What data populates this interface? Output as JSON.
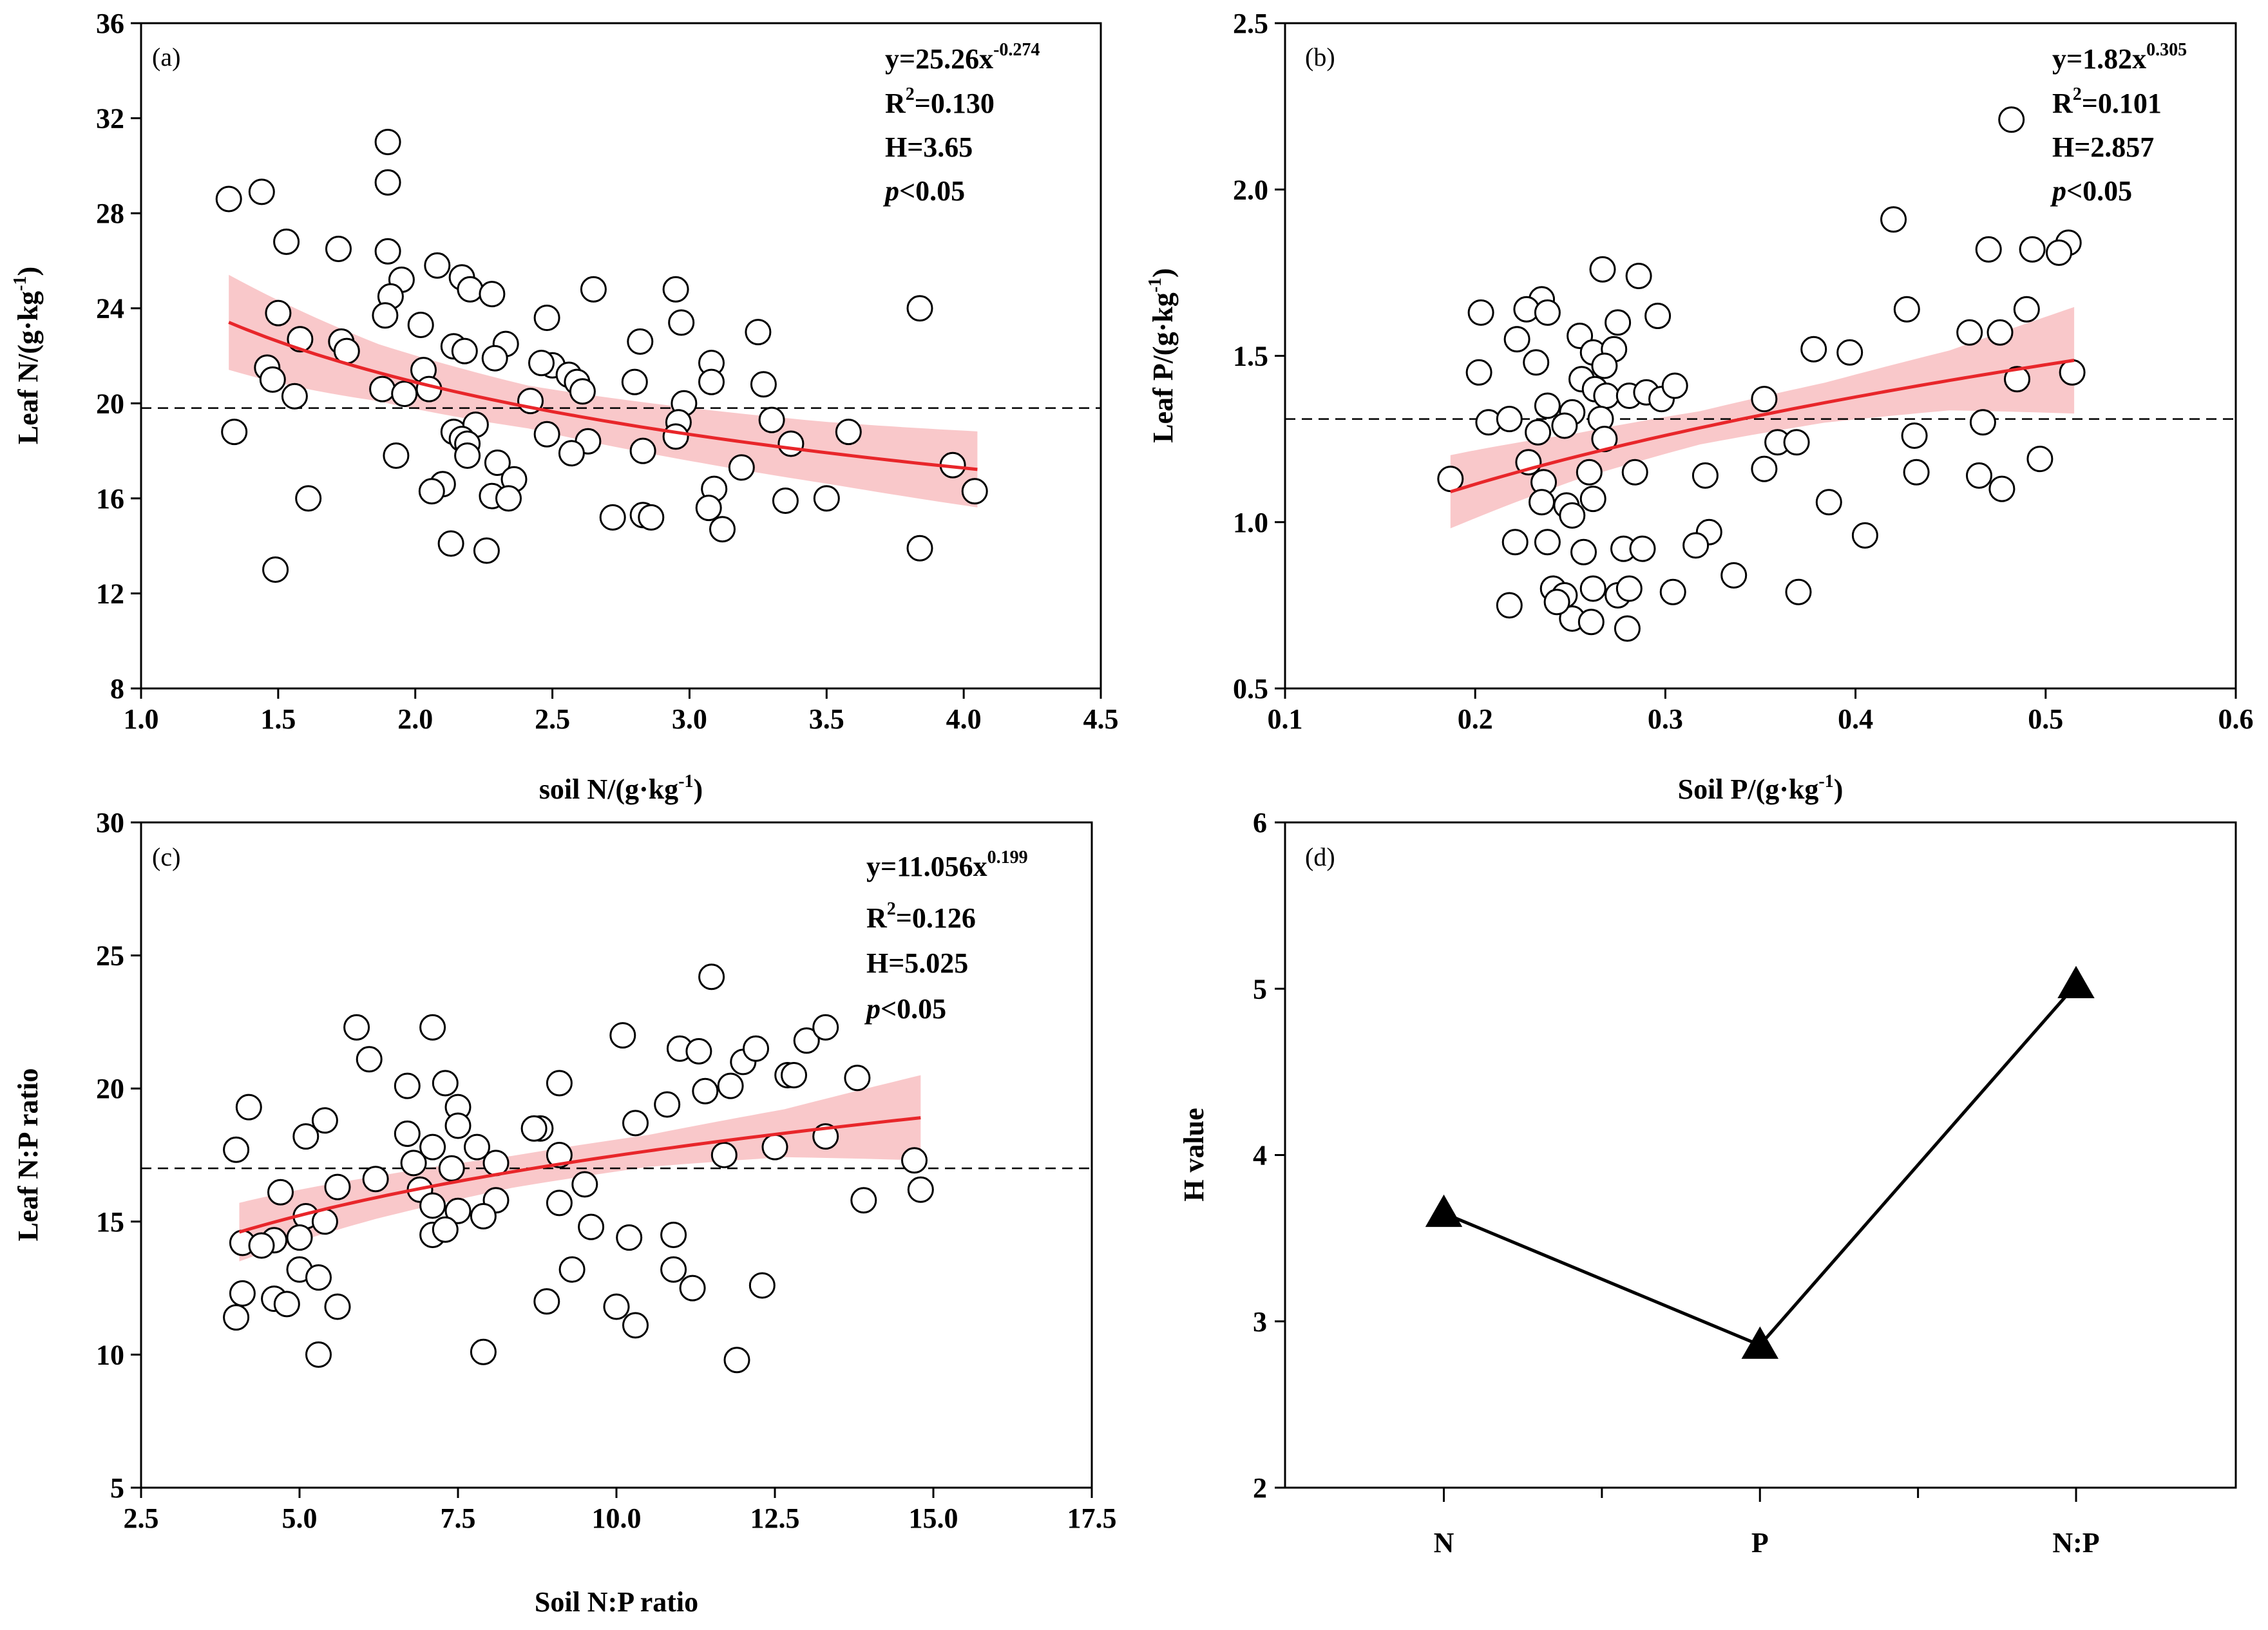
{
  "chart_data": [
    {
      "type": "scatter",
      "panel_label": "(a)",
      "xlabel": "soil N/(g·kg-1)",
      "ylabel": "Leaf N/(g·kg-1)",
      "xlabel_parts": {
        "main": "soil N/(g·kg",
        "sup": "-1",
        "end": ")"
      },
      "ylabel_parts": {
        "main": "Leaf N/(g·kg",
        "sup": "-1",
        "end": ")"
      },
      "xlim": [
        1.0,
        4.5
      ],
      "ylim": [
        8,
        36
      ],
      "xticks": [
        1.0,
        1.5,
        2.0,
        2.5,
        3.0,
        3.5,
        4.0,
        4.5
      ],
      "yticks": [
        8,
        12,
        16,
        20,
        24,
        28,
        32,
        36
      ],
      "xtick_labels": [
        "1.0",
        "1.5",
        "2.0",
        "2.5",
        "3.0",
        "3.5",
        "4.0",
        "4.5"
      ],
      "ytick_labels": [
        "8",
        "12",
        "16",
        "20",
        "24",
        "28",
        "32",
        "36"
      ],
      "mean_line": 19.8,
      "fit": {
        "a": 25.26,
        "b": -0.274,
        "x_range": [
          1.32,
          4.05
        ]
      },
      "band_halfwidth": [
        2.0,
        1.2,
        0.9,
        1.1,
        1.3,
        1.6
      ],
      "equation": {
        "base": "y=25.26x",
        "exp": "-0.274"
      },
      "r2": {
        "base": "R",
        "exp": "2",
        "rest": "=0.130"
      },
      "h_text": "H=3.65",
      "p_text": {
        "p": "p",
        "rest": "<0.05"
      },
      "points": [
        [
          1.32,
          28.6
        ],
        [
          1.44,
          28.9
        ],
        [
          1.9,
          31.0
        ],
        [
          1.9,
          29.3
        ],
        [
          1.53,
          26.8
        ],
        [
          1.72,
          26.5
        ],
        [
          1.9,
          26.4
        ],
        [
          1.95,
          25.2
        ],
        [
          1.91,
          24.5
        ],
        [
          2.08,
          25.8
        ],
        [
          2.17,
          25.3
        ],
        [
          2.2,
          24.8
        ],
        [
          2.28,
          24.6
        ],
        [
          2.65,
          24.8
        ],
        [
          2.95,
          24.8
        ],
        [
          3.84,
          24.0
        ],
        [
          1.5,
          23.8
        ],
        [
          1.89,
          23.7
        ],
        [
          2.02,
          23.3
        ],
        [
          2.48,
          23.6
        ],
        [
          2.97,
          23.4
        ],
        [
          3.25,
          23.0
        ],
        [
          1.58,
          22.7
        ],
        [
          1.73,
          22.6
        ],
        [
          2.14,
          22.4
        ],
        [
          2.33,
          22.5
        ],
        [
          2.82,
          22.6
        ],
        [
          1.75,
          22.2
        ],
        [
          2.18,
          22.2
        ],
        [
          2.29,
          21.9
        ],
        [
          2.5,
          21.6
        ],
        [
          2.46,
          21.7
        ],
        [
          3.08,
          21.7
        ],
        [
          1.46,
          21.5
        ],
        [
          2.03,
          21.4
        ],
        [
          2.56,
          21.2
        ],
        [
          2.59,
          20.9
        ],
        [
          3.08,
          20.9
        ],
        [
          3.27,
          20.8
        ],
        [
          1.48,
          21.0
        ],
        [
          1.88,
          20.6
        ],
        [
          2.05,
          20.6
        ],
        [
          2.42,
          20.1
        ],
        [
          2.61,
          20.5
        ],
        [
          2.8,
          20.9
        ],
        [
          2.98,
          20.0
        ],
        [
          1.56,
          20.3
        ],
        [
          1.96,
          20.4
        ],
        [
          2.96,
          19.2
        ],
        [
          3.3,
          19.3
        ],
        [
          2.14,
          18.8
        ],
        [
          2.22,
          19.1
        ],
        [
          2.48,
          18.7
        ],
        [
          2.63,
          18.4
        ],
        [
          2.95,
          18.6
        ],
        [
          3.37,
          18.3
        ],
        [
          3.58,
          18.8
        ],
        [
          1.34,
          18.8
        ],
        [
          2.17,
          18.5
        ],
        [
          2.19,
          18.3
        ],
        [
          2.57,
          17.9
        ],
        [
          2.83,
          18.0
        ],
        [
          3.19,
          17.3
        ],
        [
          3.96,
          17.4
        ],
        [
          1.93,
          17.8
        ],
        [
          2.19,
          17.8
        ],
        [
          2.3,
          17.5
        ],
        [
          2.36,
          16.8
        ],
        [
          2.1,
          16.6
        ],
        [
          2.28,
          16.1
        ],
        [
          2.34,
          16.0
        ],
        [
          3.09,
          16.4
        ],
        [
          3.35,
          15.9
        ],
        [
          3.5,
          16.0
        ],
        [
          4.04,
          16.3
        ],
        [
          2.06,
          16.3
        ],
        [
          1.61,
          16.0
        ],
        [
          2.72,
          15.2
        ],
        [
          2.83,
          15.3
        ],
        [
          2.86,
          15.2
        ],
        [
          3.07,
          15.6
        ],
        [
          3.12,
          14.7
        ],
        [
          2.13,
          14.1
        ],
        [
          2.26,
          13.8
        ],
        [
          3.84,
          13.9
        ],
        [
          1.49,
          13.0
        ]
      ]
    },
    {
      "type": "scatter",
      "panel_label": "(b)",
      "xlabel": "Soil P/(g·kg-1)",
      "ylabel": "Leaf P/(g·kg-1)",
      "xlabel_parts": {
        "main": "Soil P/(g·kg",
        "sup": "-1",
        "end": ")"
      },
      "ylabel_parts": {
        "main": "Leaf P/(g·kg",
        "sup": "-1",
        "end": ")"
      },
      "xlim": [
        0.1,
        0.6
      ],
      "ylim": [
        0.5,
        2.5
      ],
      "xticks": [
        0.1,
        0.2,
        0.3,
        0.4,
        0.5,
        0.6
      ],
      "yticks": [
        0.5,
        1.0,
        1.5,
        2.0,
        2.5
      ],
      "xtick_labels": [
        "0.1",
        "0.2",
        "0.3",
        "0.4",
        "0.5",
        "0.6"
      ],
      "ytick_labels": [
        "0.5",
        "1.0",
        "1.5",
        "2.0",
        "2.5"
      ],
      "mean_line": 1.31,
      "fit": {
        "a": 1.82,
        "b": 0.305,
        "x_range": [
          0.187,
          0.515
        ]
      },
      "band_halfwidth": [
        0.11,
        0.07,
        0.05,
        0.06,
        0.09,
        0.16
      ],
      "equation": {
        "base": "y=1.82x",
        "exp": "0.305"
      },
      "r2": {
        "base": "R",
        "exp": "2",
        "rest": "=0.101"
      },
      "h_text": "H=2.857",
      "p_text": {
        "p": "p",
        "rest": "<0.05"
      },
      "points": [
        [
          0.482,
          2.21
        ],
        [
          0.42,
          1.91
        ],
        [
          0.512,
          1.84
        ],
        [
          0.47,
          1.82
        ],
        [
          0.493,
          1.82
        ],
        [
          0.507,
          1.81
        ],
        [
          0.267,
          1.76
        ],
        [
          0.286,
          1.74
        ],
        [
          0.235,
          1.67
        ],
        [
          0.227,
          1.64
        ],
        [
          0.238,
          1.63
        ],
        [
          0.203,
          1.63
        ],
        [
          0.275,
          1.6
        ],
        [
          0.296,
          1.62
        ],
        [
          0.427,
          1.64
        ],
        [
          0.49,
          1.64
        ],
        [
          0.255,
          1.56
        ],
        [
          0.222,
          1.55
        ],
        [
          0.46,
          1.57
        ],
        [
          0.476,
          1.57
        ],
        [
          0.262,
          1.51
        ],
        [
          0.273,
          1.52
        ],
        [
          0.378,
          1.52
        ],
        [
          0.397,
          1.51
        ],
        [
          0.232,
          1.48
        ],
        [
          0.268,
          1.47
        ],
        [
          0.202,
          1.45
        ],
        [
          0.256,
          1.43
        ],
        [
          0.514,
          1.45
        ],
        [
          0.485,
          1.43
        ],
        [
          0.263,
          1.4
        ],
        [
          0.269,
          1.38
        ],
        [
          0.281,
          1.38
        ],
        [
          0.29,
          1.39
        ],
        [
          0.298,
          1.37
        ],
        [
          0.305,
          1.41
        ],
        [
          0.352,
          1.37
        ],
        [
          0.238,
          1.35
        ],
        [
          0.251,
          1.33
        ],
        [
          0.266,
          1.31
        ],
        [
          0.207,
          1.3
        ],
        [
          0.218,
          1.31
        ],
        [
          0.233,
          1.27
        ],
        [
          0.247,
          1.29
        ],
        [
          0.268,
          1.25
        ],
        [
          0.431,
          1.26
        ],
        [
          0.467,
          1.3
        ],
        [
          0.359,
          1.24
        ],
        [
          0.369,
          1.24
        ],
        [
          0.228,
          1.18
        ],
        [
          0.236,
          1.12
        ],
        [
          0.26,
          1.15
        ],
        [
          0.284,
          1.15
        ],
        [
          0.352,
          1.16
        ],
        [
          0.321,
          1.14
        ],
        [
          0.432,
          1.15
        ],
        [
          0.465,
          1.14
        ],
        [
          0.477,
          1.1
        ],
        [
          0.497,
          1.19
        ],
        [
          0.187,
          1.13
        ],
        [
          0.248,
          1.05
        ],
        [
          0.262,
          1.07
        ],
        [
          0.235,
          1.06
        ],
        [
          0.386,
          1.06
        ],
        [
          0.251,
          1.02
        ],
        [
          0.405,
          0.96
        ],
        [
          0.323,
          0.97
        ],
        [
          0.316,
          0.93
        ],
        [
          0.221,
          0.94
        ],
        [
          0.238,
          0.94
        ],
        [
          0.257,
          0.91
        ],
        [
          0.278,
          0.92
        ],
        [
          0.288,
          0.92
        ],
        [
          0.336,
          0.84
        ],
        [
          0.241,
          0.8
        ],
        [
          0.247,
          0.78
        ],
        [
          0.262,
          0.8
        ],
        [
          0.275,
          0.78
        ],
        [
          0.281,
          0.8
        ],
        [
          0.304,
          0.79
        ],
        [
          0.37,
          0.79
        ],
        [
          0.218,
          0.75
        ],
        [
          0.251,
          0.71
        ],
        [
          0.261,
          0.7
        ],
        [
          0.28,
          0.68
        ],
        [
          0.243,
          0.76
        ]
      ]
    },
    {
      "type": "scatter",
      "panel_label": "(c)",
      "xlabel": "Soil N:P ratio",
      "ylabel": "Leaf N:P ratio",
      "xlabel_parts": {
        "main": "Soil N:P ratio",
        "sup": "",
        "end": ""
      },
      "ylabel_parts": {
        "main": "Leaf N:P ratio",
        "sup": "",
        "end": ""
      },
      "xlim": [
        2.5,
        17.5
      ],
      "ylim": [
        5,
        30
      ],
      "xticks": [
        2.5,
        5.0,
        7.5,
        10.0,
        12.5,
        15.0,
        17.5
      ],
      "yticks": [
        5,
        10,
        15,
        20,
        25,
        30
      ],
      "xtick_labels": [
        "2.5",
        "5.0",
        "7.5",
        "10.0",
        "12.5",
        "15.0",
        "17.5"
      ],
      "ytick_labels": [
        "5",
        "10",
        "15",
        "20",
        "25",
        "30"
      ],
      "mean_line": 17.0,
      "fit": {
        "a": 11.056,
        "b": 0.199,
        "x_range": [
          4.05,
          14.8
        ]
      },
      "band_halfwidth": [
        1.1,
        0.8,
        0.6,
        0.6,
        0.9,
        1.6
      ],
      "equation": {
        "base": "y=11.056x",
        "exp": "0.199"
      },
      "r2": {
        "base": "R",
        "exp": "2",
        "rest": "=0.126"
      },
      "h_text": "H=5.025",
      "p_text": {
        "p": "p",
        "rest": "<0.05"
      },
      "points": [
        [
          11.5,
          24.2
        ],
        [
          5.9,
          22.3
        ],
        [
          7.1,
          22.3
        ],
        [
          10.1,
          22.0
        ],
        [
          13.0,
          21.8
        ],
        [
          13.3,
          22.3
        ],
        [
          11.0,
          21.5
        ],
        [
          11.3,
          21.4
        ],
        [
          12.0,
          21.0
        ],
        [
          12.2,
          21.5
        ],
        [
          6.1,
          21.1
        ],
        [
          4.2,
          19.3
        ],
        [
          7.3,
          20.2
        ],
        [
          6.7,
          20.1
        ],
        [
          9.1,
          20.2
        ],
        [
          12.7,
          20.5
        ],
        [
          12.8,
          20.5
        ],
        [
          13.8,
          20.4
        ],
        [
          10.8,
          19.4
        ],
        [
          11.4,
          19.9
        ],
        [
          11.8,
          20.1
        ],
        [
          7.5,
          19.3
        ],
        [
          7.5,
          18.6
        ],
        [
          5.4,
          18.8
        ],
        [
          5.1,
          18.2
        ],
        [
          6.7,
          18.3
        ],
        [
          8.8,
          18.5
        ],
        [
          8.7,
          18.5
        ],
        [
          10.3,
          18.7
        ],
        [
          4.0,
          17.7
        ],
        [
          7.1,
          17.8
        ],
        [
          7.8,
          17.8
        ],
        [
          7.4,
          17.0
        ],
        [
          8.1,
          17.2
        ],
        [
          9.1,
          17.5
        ],
        [
          11.7,
          17.5
        ],
        [
          12.5,
          17.8
        ],
        [
          13.3,
          18.2
        ],
        [
          14.7,
          17.3
        ],
        [
          6.8,
          17.2
        ],
        [
          5.6,
          16.3
        ],
        [
          6.2,
          16.6
        ],
        [
          6.9,
          16.2
        ],
        [
          8.1,
          15.8
        ],
        [
          9.1,
          15.7
        ],
        [
          9.5,
          16.4
        ],
        [
          14.8,
          16.2
        ],
        [
          7.1,
          15.6
        ],
        [
          7.5,
          15.4
        ],
        [
          7.9,
          15.2
        ],
        [
          4.7,
          16.1
        ],
        [
          5.1,
          15.2
        ],
        [
          5.4,
          15.0
        ],
        [
          9.6,
          14.8
        ],
        [
          10.2,
          14.4
        ],
        [
          10.9,
          14.5
        ],
        [
          13.9,
          15.8
        ],
        [
          4.1,
          14.2
        ],
        [
          4.6,
          14.3
        ],
        [
          5.0,
          14.4
        ],
        [
          7.1,
          14.5
        ],
        [
          7.3,
          14.7
        ],
        [
          4.4,
          14.1
        ],
        [
          5.0,
          13.2
        ],
        [
          5.3,
          12.9
        ],
        [
          9.3,
          13.2
        ],
        [
          10.9,
          13.2
        ],
        [
          11.2,
          12.5
        ],
        [
          12.3,
          12.6
        ],
        [
          4.1,
          12.3
        ],
        [
          4.6,
          12.1
        ],
        [
          4.8,
          11.9
        ],
        [
          5.6,
          11.8
        ],
        [
          8.9,
          12.0
        ],
        [
          10.0,
          11.8
        ],
        [
          10.3,
          11.1
        ],
        [
          4.0,
          11.4
        ],
        [
          5.3,
          10.0
        ],
        [
          7.9,
          10.1
        ],
        [
          11.9,
          9.8
        ]
      ]
    },
    {
      "type": "line",
      "panel_label": "(d)",
      "xlabel": "",
      "ylabel": "H value",
      "categories": [
        "N",
        "P",
        "N:P"
      ],
      "values": [
        3.65,
        2.857,
        5.025
      ],
      "ylim": [
        2,
        6
      ],
      "yticks": [
        2,
        3,
        4,
        5,
        6
      ],
      "ytick_labels": [
        "2",
        "3",
        "4",
        "5",
        "6"
      ],
      "marker": "triangle"
    }
  ]
}
